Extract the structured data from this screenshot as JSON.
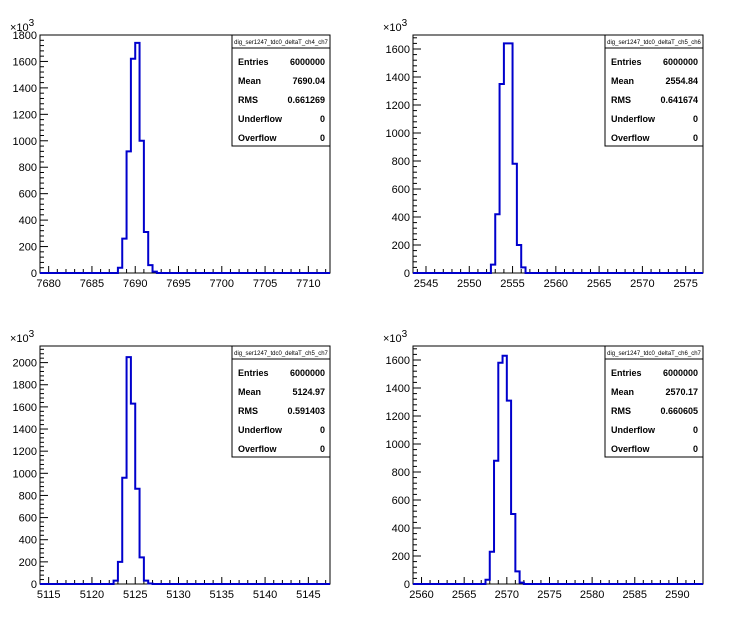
{
  "colors": {
    "histogram_line": "#0000cc",
    "axis": "#000000",
    "background": "#ffffff"
  },
  "chart_data": [
    {
      "type": "histogram",
      "title": "dig_ser1247_tdc0_deltaT_ch4_ch7",
      "xlim": [
        7679,
        7712.5
      ],
      "ylim": [
        0,
        1800
      ],
      "y_multiplier": "10^3",
      "x_ticks": [
        "7680",
        "7685",
        "7690",
        "7695",
        "7700",
        "7705",
        "7710"
      ],
      "y_ticks": [
        "0",
        "200",
        "400",
        "600",
        "800",
        "1000",
        "1200",
        "1400",
        "1600",
        "1800"
      ],
      "bins": {
        "x": [
          7688.0,
          7688.5,
          7689.0,
          7689.5,
          7690.0,
          7690.5,
          7691.0,
          7691.5,
          7692.0
        ],
        "values": [
          40,
          260,
          920,
          1620,
          1740,
          1000,
          310,
          60,
          10
        ]
      },
      "stats": {
        "entries": "6000000",
        "mean": "7690.04",
        "rms": "0.661269",
        "underflow": "0",
        "overflow": "0"
      }
    },
    {
      "type": "histogram",
      "title": "dig_ser1247_tdc0_deltaT_ch5_ch6",
      "xlim": [
        2543.5,
        2577
      ],
      "ylim": [
        0,
        1700
      ],
      "y_multiplier": "10^3",
      "x_ticks": [
        "2545",
        "2550",
        "2555",
        "2560",
        "2565",
        "2570",
        "2575"
      ],
      "y_ticks": [
        "0",
        "200",
        "400",
        "600",
        "800",
        "1000",
        "1200",
        "1400",
        "1600"
      ],
      "bins": {
        "x": [
          2552.5,
          2553.0,
          2553.5,
          2554.0,
          2554.5,
          2555.0,
          2555.5,
          2556.0
        ],
        "values": [
          60,
          420,
          1350,
          1640,
          1640,
          780,
          200,
          40
        ]
      },
      "stats": {
        "entries": "6000000",
        "mean": "2554.84",
        "rms": "0.641674",
        "underflow": "0",
        "overflow": "0"
      }
    },
    {
      "type": "histogram",
      "title": "dig_ser1247_tdc0_deltaT_ch5_ch7",
      "xlim": [
        5114,
        5147.5
      ],
      "ylim": [
        0,
        2150
      ],
      "y_multiplier": "10^3",
      "x_ticks": [
        "5115",
        "5120",
        "5125",
        "5130",
        "5135",
        "5140",
        "5145"
      ],
      "y_ticks": [
        "0",
        "200",
        "400",
        "600",
        "800",
        "1000",
        "1200",
        "1400",
        "1600",
        "1800",
        "2000"
      ],
      "bins": {
        "x": [
          5122.5,
          5123.0,
          5123.5,
          5124.0,
          5124.5,
          5125.0,
          5125.5,
          5126.0,
          5126.5
        ],
        "values": [
          30,
          200,
          960,
          2050,
          1630,
          860,
          240,
          30,
          5
        ]
      },
      "stats": {
        "entries": "6000000",
        "mean": "5124.97",
        "rms": "0.591403",
        "underflow": "0",
        "overflow": "0"
      }
    },
    {
      "type": "histogram",
      "title": "dig_ser1247_tdc0_deltaT_ch6_ch7",
      "xlim": [
        2559,
        2593
      ],
      "ylim": [
        0,
        1700
      ],
      "y_multiplier": "10^3",
      "x_ticks": [
        "2560",
        "2565",
        "2570",
        "2575",
        "2580",
        "2585",
        "2590"
      ],
      "y_ticks": [
        "0",
        "200",
        "400",
        "600",
        "800",
        "1000",
        "1200",
        "1400",
        "1600"
      ],
      "bins": {
        "x": [
          2567.5,
          2568.0,
          2568.5,
          2569.0,
          2569.5,
          2570.0,
          2570.5,
          2571.0,
          2571.5
        ],
        "values": [
          30,
          230,
          880,
          1580,
          1630,
          1310,
          500,
          90,
          10
        ]
      },
      "stats": {
        "entries": "6000000",
        "mean": "2570.17",
        "rms": "0.660605",
        "underflow": "0",
        "overflow": "0"
      }
    }
  ],
  "stats_labels": {
    "entries": "Entries",
    "mean": "Mean",
    "rms": "RMS",
    "underflow": "Underflow",
    "overflow": "Overflow"
  }
}
